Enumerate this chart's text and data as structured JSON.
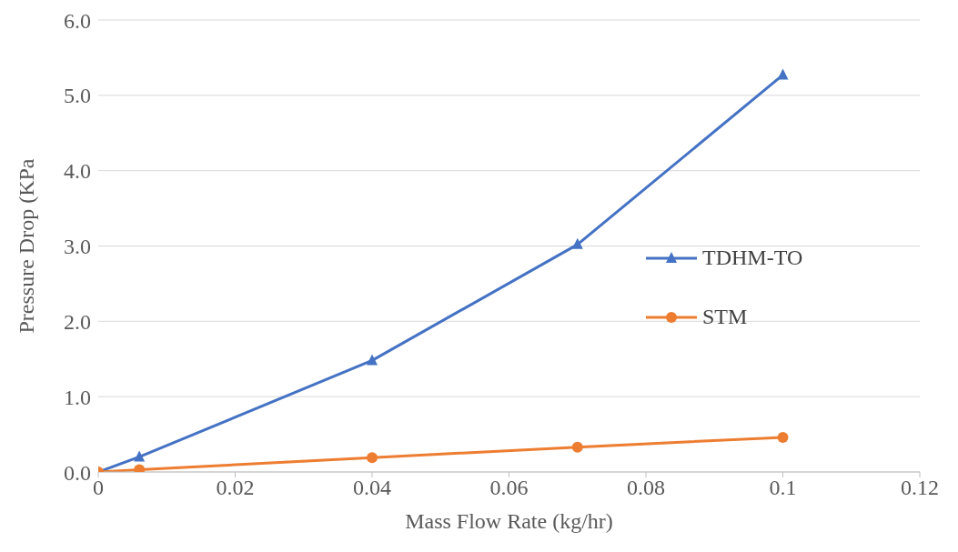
{
  "chart_data": {
    "type": "line",
    "xlabel": "Mass Flow Rate (kg/hr)",
    "ylabel": "Pressure Drop (KPa",
    "series": [
      {
        "name": "TDHM-TO",
        "color": "#4472c4",
        "marker": "triangle",
        "x": [
          0,
          0.006,
          0.04,
          0.07,
          0.1
        ],
        "values": [
          0,
          0.2,
          1.48,
          3.02,
          5.27
        ]
      },
      {
        "name": "STM",
        "color": "#ed7d31",
        "marker": "circle",
        "x": [
          0,
          0.006,
          0.04,
          0.07,
          0.1
        ],
        "values": [
          0,
          0.03,
          0.19,
          0.33,
          0.46
        ]
      }
    ],
    "xlim": [
      0,
      0.12
    ],
    "xticks": [
      0,
      0.02,
      0.04,
      0.06,
      0.08,
      0.1,
      0.12
    ],
    "ylim": [
      0,
      6
    ],
    "yticks": [
      {
        "value": 0,
        "label": "0.0"
      },
      {
        "value": 1,
        "label": "1.0"
      },
      {
        "value": 2,
        "label": "2.0"
      },
      {
        "value": 3,
        "label": "3.0"
      },
      {
        "value": 4,
        "label": "4.0"
      },
      {
        "value": 5,
        "label": "5.0"
      },
      {
        "value": 6,
        "label": "6.0"
      }
    ],
    "grid": "y",
    "legend": "right",
    "line_style": "solid"
  }
}
